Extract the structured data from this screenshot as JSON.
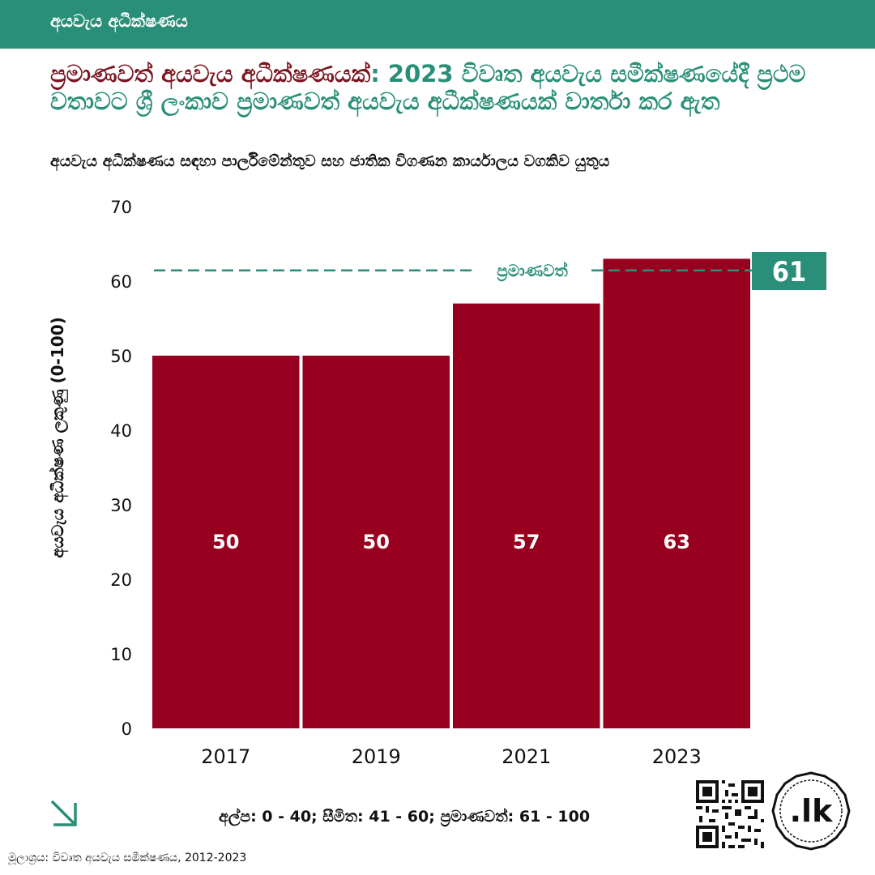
{
  "header": {
    "section_title": "අයවැය අධීක්ෂණය",
    "accent_color": "#2a8f78",
    "highlight_color": "#7a1620"
  },
  "headline": {
    "highlight": "ප්‍රමාණවත් අයවැය අධීක්ෂණයක්",
    "rest": ": 2023 විවෘත අයවැය සමීක්ෂණයේදී ප්‍රථම වතාවට ශ්‍රී ලංකාව ප්‍රමාණවත් අයවැය අධීක්ෂණයක් වාර්තා කර ඇත"
  },
  "subtitle": "අයවැය අධීක්ෂණය සඳහා පාර්ලිමේන්තුව සහ ජාතික විගණන කාර්යාලය වගකිව යුතුය",
  "chart_data": {
    "type": "bar",
    "categories": [
      "2017",
      "2019",
      "2021",
      "2023"
    ],
    "values": [
      50,
      50,
      57,
      63
    ],
    "data_labels": [
      "50",
      "50",
      "57",
      "63"
    ],
    "ylabel": "අයවැය අධීක්ෂණ ලකුණු (0-100)",
    "ylim": [
      0,
      70
    ],
    "yticks": [
      0,
      10,
      20,
      30,
      40,
      50,
      60,
      70
    ],
    "bar_color": "#98001f",
    "grid": false,
    "reference_line": {
      "value": 61,
      "label": "ප්‍රමාණවත්",
      "value_label": "61",
      "color": "#2a8f78",
      "style": "dashed"
    }
  },
  "footer": {
    "legend": "අල්ප: 0 - 40; සීමිත: 41 - 60; ප්‍රමාණවත්: 61 - 100",
    "source": "මූලාශ්‍රය: විවෘත අයවැය සමීක්ෂණය, 2012-2023",
    "arrow_icon": "arrow-down-right-icon",
    "qr_icon": "qr-code-icon",
    "logo_text": ".lk"
  }
}
